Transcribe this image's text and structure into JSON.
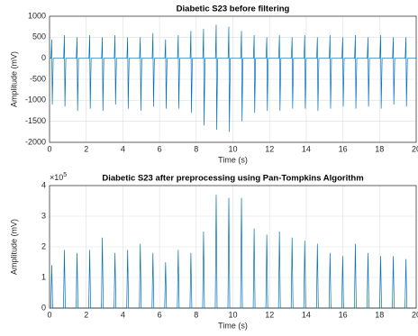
{
  "chart_data": [
    {
      "type": "line",
      "title": "Diabetic S23 before filtering",
      "x_label": "Time (s)",
      "y_label": "Amplitude (mV)",
      "xlim": [
        0,
        20
      ],
      "ylim": [
        -2000,
        1000
      ],
      "xticks": [
        0,
        2,
        4,
        6,
        8,
        10,
        12,
        14,
        16,
        18,
        20
      ],
      "yticks": [
        -2000,
        -1500,
        -1000,
        -500,
        0,
        500,
        1000
      ],
      "grid": true,
      "series": [
        {
          "color": "#0072bd",
          "x": [
            0,
            0.08,
            0.12,
            0.15,
            0.2,
            0.77,
            0.81,
            0.84,
            0.89,
            1.46,
            1.5,
            1.53,
            1.58,
            2.15,
            2.19,
            2.22,
            2.27,
            2.84,
            2.88,
            2.91,
            2.96,
            3.53,
            3.57,
            3.6,
            3.65,
            4.22,
            4.26,
            4.29,
            4.34,
            4.91,
            4.95,
            4.98,
            5.03,
            5.6,
            5.64,
            5.67,
            5.72,
            6.29,
            6.33,
            6.36,
            6.41,
            6.98,
            7.02,
            7.05,
            7.1,
            7.67,
            7.71,
            7.74,
            7.79,
            8.36,
            8.4,
            8.43,
            8.48,
            9.05,
            9.09,
            9.12,
            9.17,
            9.74,
            9.78,
            9.81,
            9.86,
            10.43,
            10.47,
            10.5,
            10.55,
            11.12,
            11.16,
            11.19,
            11.24,
            11.81,
            11.85,
            11.88,
            11.93,
            12.5,
            12.54,
            12.57,
            12.62,
            13.19,
            13.23,
            13.26,
            13.31,
            13.88,
            13.92,
            13.95,
            14.0,
            14.57,
            14.61,
            14.64,
            14.69,
            15.26,
            15.3,
            15.33,
            15.38,
            15.95,
            15.99,
            16.02,
            16.07,
            16.64,
            16.68,
            16.71,
            16.76,
            17.33,
            17.37,
            17.4,
            17.45,
            18.02,
            18.06,
            18.09,
            18.14,
            18.71,
            18.75,
            18.78,
            18.83,
            19.4,
            19.44,
            19.47,
            19.52,
            20
          ],
          "values": [
            0,
            0,
            450,
            -1100,
            0,
            0,
            550,
            -1150,
            0,
            0,
            500,
            -1250,
            0,
            0,
            550,
            -1200,
            0,
            0,
            500,
            -1250,
            0,
            0,
            550,
            -1100,
            0,
            0,
            500,
            -1200,
            0,
            0,
            500,
            -1250,
            0,
            0,
            600,
            -1150,
            0,
            0,
            450,
            -1200,
            0,
            0,
            550,
            -1200,
            0,
            0,
            650,
            -1300,
            0,
            0,
            700,
            -1600,
            0,
            0,
            800,
            -1700,
            0,
            0,
            750,
            -1750,
            0,
            0,
            650,
            -1500,
            0,
            0,
            550,
            -1300,
            0,
            0,
            500,
            -1250,
            0,
            0,
            550,
            -1250,
            0,
            0,
            500,
            -1200,
            0,
            0,
            550,
            -1200,
            0,
            0,
            500,
            -1250,
            0,
            0,
            550,
            -1200,
            0,
            0,
            500,
            -1150,
            0,
            0,
            550,
            -1200,
            0,
            0,
            500,
            -1150,
            0,
            0,
            550,
            -1200,
            0,
            0,
            500,
            -1100,
            0,
            0,
            500,
            -1150,
            0,
            0
          ]
        }
      ]
    },
    {
      "type": "line",
      "title": "Diabetic S23 after preprocessing using Pan-Tompkins Algorithm",
      "x_label": "Time (s)",
      "y_label": "Amplitude (mV)",
      "y_exponent": {
        "base": "×10",
        "power": "5"
      },
      "xlim": [
        0,
        20
      ],
      "ylim": [
        0,
        4
      ],
      "xticks": [
        0,
        2,
        4,
        6,
        8,
        10,
        12,
        14,
        16,
        18,
        20
      ],
      "yticks": [
        0,
        1,
        2,
        3,
        4
      ],
      "grid": true,
      "series": [
        {
          "color": "#0072bd",
          "x": [
            0,
            0.07,
            0.12,
            0.17,
            0.76,
            0.81,
            0.86,
            1.45,
            1.5,
            1.55,
            2.14,
            2.19,
            2.24,
            2.83,
            2.88,
            2.93,
            3.52,
            3.57,
            3.62,
            4.21,
            4.26,
            4.31,
            4.9,
            4.95,
            5.0,
            5.59,
            5.64,
            5.69,
            6.28,
            6.33,
            6.38,
            6.97,
            7.02,
            7.07,
            7.66,
            7.71,
            7.76,
            8.35,
            8.4,
            8.45,
            9.04,
            9.09,
            9.14,
            9.73,
            9.78,
            9.83,
            10.42,
            10.47,
            10.52,
            11.11,
            11.16,
            11.21,
            11.8,
            11.85,
            11.9,
            12.49,
            12.54,
            12.59,
            13.18,
            13.23,
            13.28,
            13.87,
            13.92,
            13.97,
            14.56,
            14.61,
            14.66,
            15.25,
            15.3,
            15.35,
            15.94,
            15.99,
            16.04,
            16.63,
            16.68,
            16.73,
            17.32,
            17.37,
            17.42,
            18.01,
            18.06,
            18.11,
            18.7,
            18.75,
            18.8,
            19.39,
            19.44,
            19.49,
            20
          ],
          "values": [
            0,
            0,
            1.4,
            0,
            0,
            1.9,
            0,
            0,
            1.8,
            0,
            0,
            1.9,
            0,
            0,
            2.3,
            0,
            0,
            1.8,
            0,
            0,
            1.9,
            0,
            0,
            2.1,
            0,
            0,
            1.8,
            0,
            0,
            1.5,
            0,
            0,
            1.9,
            0,
            0,
            1.8,
            0,
            0,
            2.5,
            0,
            0,
            3.7,
            0,
            0,
            3.6,
            0,
            0,
            3.6,
            0,
            0,
            2.6,
            0,
            0,
            2.4,
            0,
            0,
            2.5,
            0,
            0,
            2.3,
            0,
            0,
            2.2,
            0,
            0,
            2.1,
            0,
            0,
            1.8,
            0,
            0,
            1.7,
            0,
            0,
            2.1,
            0,
            0,
            1.8,
            0,
            0,
            1.7,
            0,
            0,
            1.7,
            0,
            0,
            1.6,
            0,
            0
          ]
        }
      ]
    }
  ]
}
